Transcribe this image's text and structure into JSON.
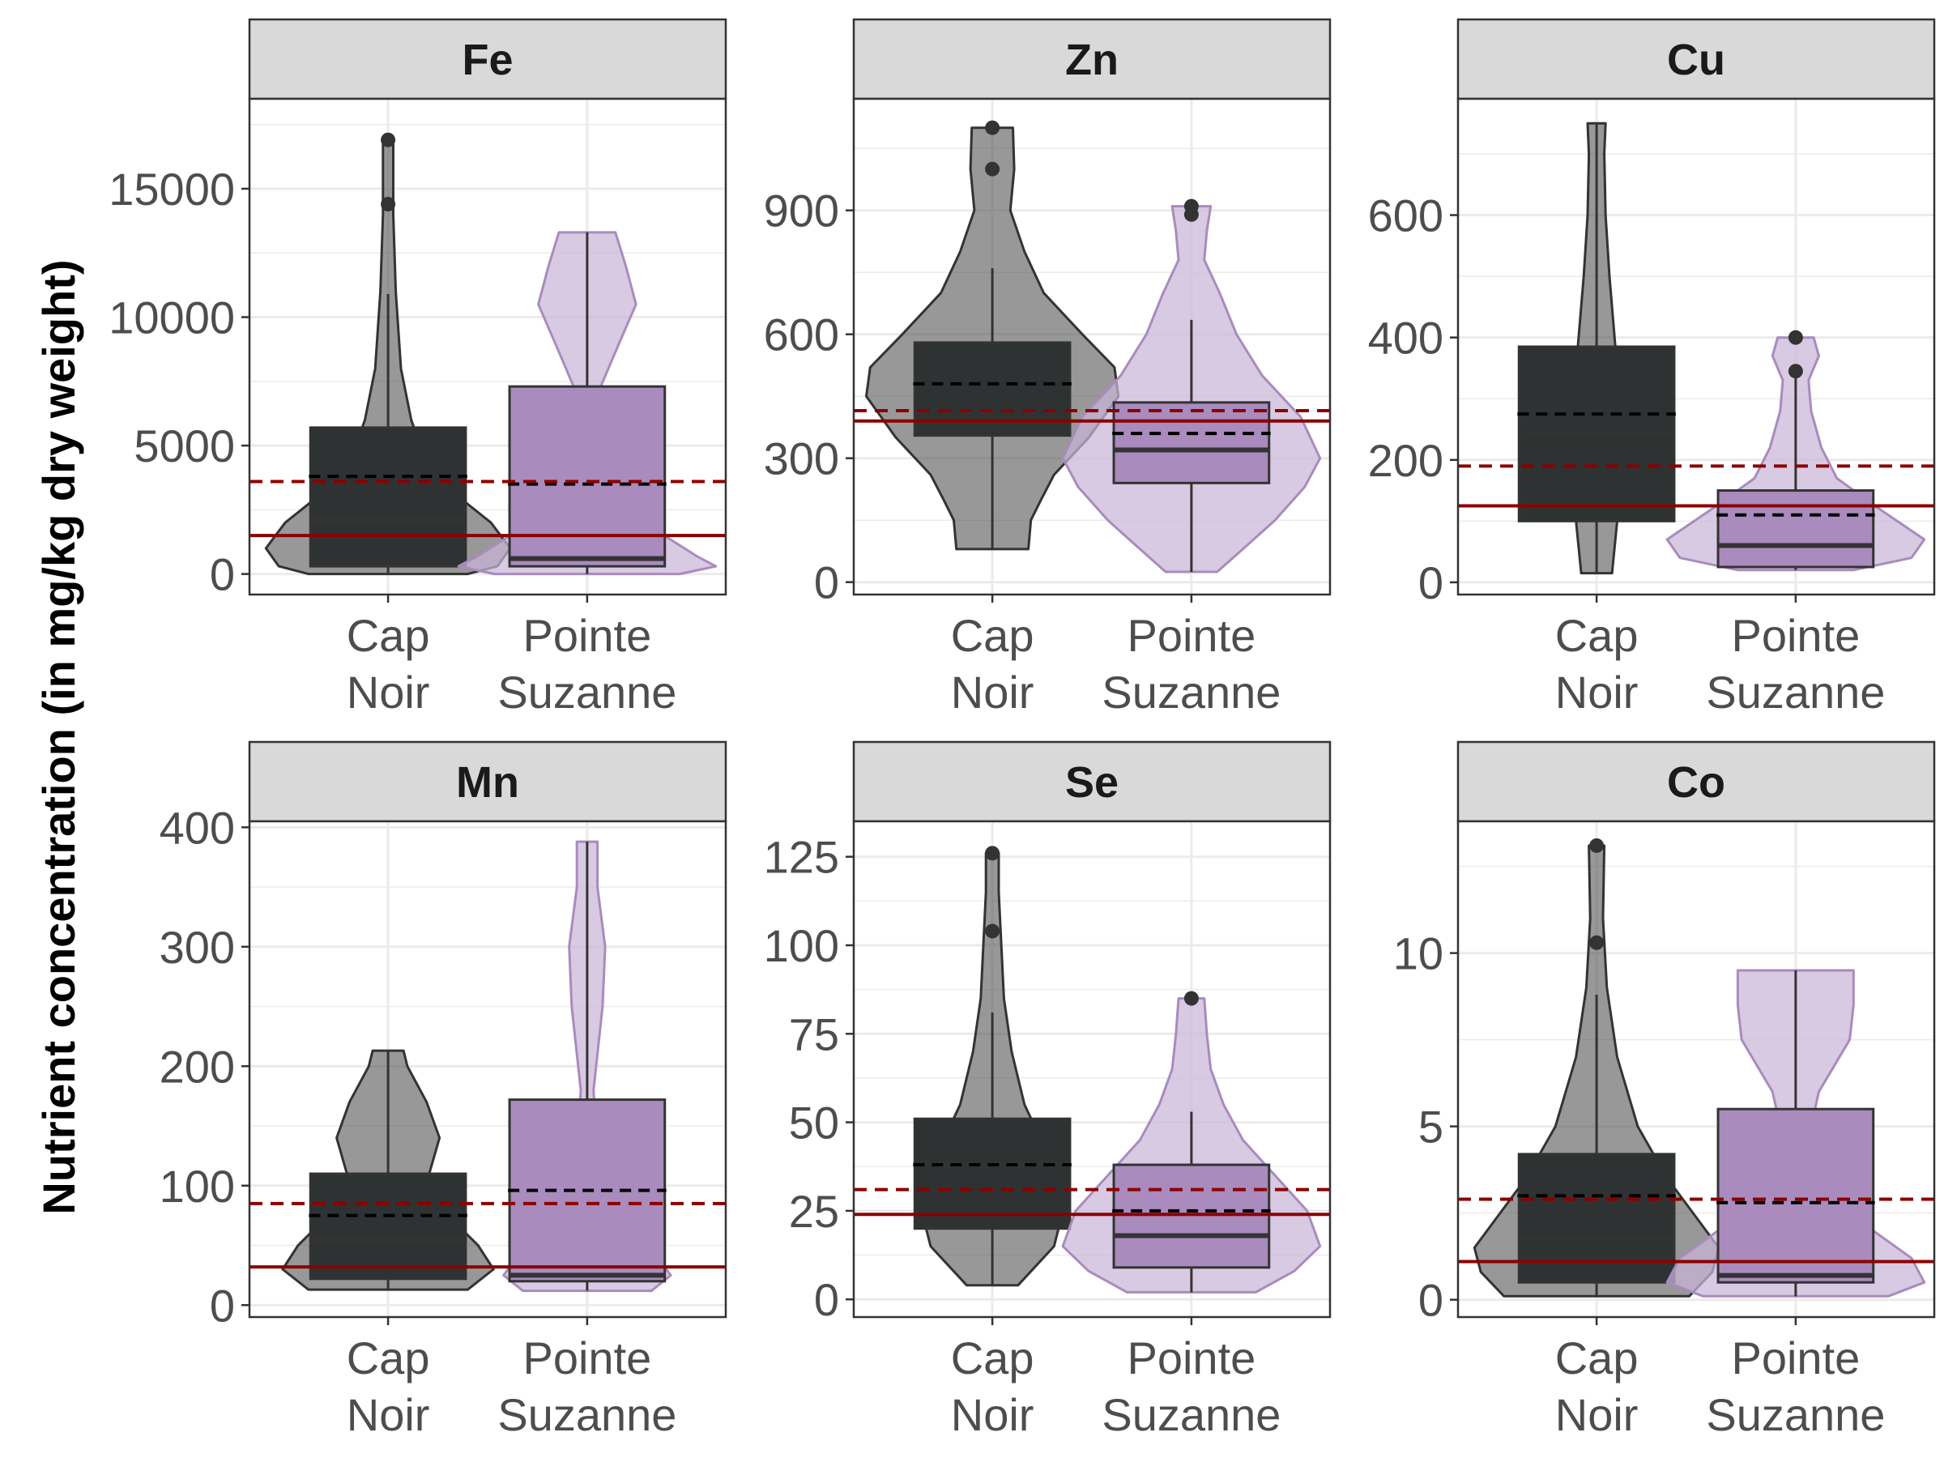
{
  "figure": {
    "ylabel": "Nutrient concentration (in mg/kg dry weight)"
  },
  "colors": {
    "cap_fill": "#4d4d4d",
    "cap_box": "#2f3233",
    "pointe_fill": "#c9b5d8",
    "pointe_box": "#a98bbd",
    "pointe_line": "#a98bbd",
    "ref_line": "#8b0000"
  },
  "chart_data": [
    {
      "type": "violin+box",
      "title": "Fe",
      "categories": [
        "Cap\nNoir",
        "Pointe\nSuzanne"
      ],
      "yticks": [
        0,
        5000,
        10000,
        15000
      ],
      "ylim": [
        -800,
        18500
      ],
      "grid": true,
      "ref_solid": 1500,
      "ref_dashed": 3600,
      "series": [
        {
          "category": "Cap Noir",
          "box": {
            "q1": 300,
            "median": 2100,
            "q3": 5700,
            "whisker_low": 0,
            "whisker_high": 10900,
            "mean": 3800
          },
          "outliers": [
            16900,
            14400
          ],
          "violin": [
            [
              0,
              0.62
            ],
            [
              300,
              0.85
            ],
            [
              1000,
              0.95
            ],
            [
              2000,
              0.8
            ],
            [
              3000,
              0.55
            ],
            [
              4000,
              0.35
            ],
            [
              5000,
              0.25
            ],
            [
              6000,
              0.18
            ],
            [
              8000,
              0.1
            ],
            [
              11000,
              0.06
            ],
            [
              14000,
              0.04
            ],
            [
              16900,
              0.04
            ]
          ]
        },
        {
          "category": "Pointe Suzanne",
          "box": {
            "q1": 300,
            "median": 600,
            "q3": 7300,
            "whisker_low": 0,
            "whisker_high": 13300,
            "mean": 3500
          },
          "outliers": [],
          "violin": [
            [
              0,
              0.72
            ],
            [
              300,
              1.0
            ],
            [
              700,
              0.85
            ],
            [
              1500,
              0.6
            ],
            [
              2500,
              0.38
            ],
            [
              3500,
              0.2
            ],
            [
              5000,
              0.1
            ],
            [
              7000,
              0.08
            ],
            [
              9000,
              0.25
            ],
            [
              10500,
              0.38
            ],
            [
              12000,
              0.3
            ],
            [
              13300,
              0.22
            ]
          ]
        }
      ]
    },
    {
      "type": "violin+box",
      "title": "Zn",
      "categories": [
        "Cap\nNoir",
        "Pointe\nSuzanne"
      ],
      "yticks": [
        0,
        300,
        600,
        900
      ],
      "ylim": [
        -30,
        1170
      ],
      "grid": true,
      "ref_solid": 390,
      "ref_dashed": 415,
      "series": [
        {
          "category": "Cap Noir",
          "box": {
            "q1": 355,
            "median": 385,
            "q3": 580,
            "whisker_low": 80,
            "whisker_high": 760,
            "mean": 480
          },
          "outliers": [
            1100,
            1000
          ],
          "violin": [
            [
              80,
              0.28
            ],
            [
              150,
              0.3
            ],
            [
              200,
              0.38
            ],
            [
              260,
              0.48
            ],
            [
              350,
              0.75
            ],
            [
              450,
              0.98
            ],
            [
              520,
              0.95
            ],
            [
              600,
              0.7
            ],
            [
              700,
              0.4
            ],
            [
              800,
              0.25
            ],
            [
              900,
              0.14
            ],
            [
              1000,
              0.17
            ],
            [
              1100,
              0.16
            ]
          ]
        },
        {
          "category": "Pointe Suzanne",
          "box": {
            "q1": 240,
            "median": 320,
            "q3": 435,
            "whisker_low": 25,
            "whisker_high": 635,
            "mean": 360
          },
          "outliers": [
            910,
            890
          ],
          "violin": [
            [
              25,
              0.2
            ],
            [
              80,
              0.4
            ],
            [
              150,
              0.65
            ],
            [
              230,
              0.88
            ],
            [
              300,
              1.0
            ],
            [
              400,
              0.85
            ],
            [
              500,
              0.55
            ],
            [
              600,
              0.35
            ],
            [
              700,
              0.22
            ],
            [
              780,
              0.1
            ],
            [
              850,
              0.12
            ],
            [
              910,
              0.15
            ]
          ]
        }
      ]
    },
    {
      "type": "violin+box",
      "title": "Cu",
      "categories": [
        "Cap\nNoir",
        "Pointe\nSuzanne"
      ],
      "yticks": [
        0,
        200,
        400,
        600
      ],
      "ylim": [
        -20,
        790
      ],
      "grid": true,
      "ref_solid": 125,
      "ref_dashed": 190,
      "series": [
        {
          "category": "Cap Noir",
          "box": {
            "q1": 100,
            "median": 240,
            "q3": 385,
            "whisker_low": 15,
            "whisker_high": 750,
            "mean": 275
          },
          "outliers": [],
          "violin": [
            [
              15,
              0.12
            ],
            [
              100,
              0.16
            ],
            [
              200,
              0.19
            ],
            [
              300,
              0.18
            ],
            [
              400,
              0.14
            ],
            [
              500,
              0.1
            ],
            [
              600,
              0.07
            ],
            [
              700,
              0.06
            ],
            [
              750,
              0.07
            ]
          ]
        },
        {
          "category": "Pointe Suzanne",
          "box": {
            "q1": 25,
            "median": 60,
            "q3": 150,
            "whisker_low": 20,
            "whisker_high": 340,
            "mean": 110
          },
          "outliers": [
            400,
            345
          ],
          "violin": [
            [
              20,
              0.45
            ],
            [
              40,
              0.9
            ],
            [
              70,
              1.0
            ],
            [
              120,
              0.65
            ],
            [
              170,
              0.32
            ],
            [
              220,
              0.2
            ],
            [
              280,
              0.12
            ],
            [
              330,
              0.1
            ],
            [
              370,
              0.18
            ],
            [
              400,
              0.14
            ]
          ]
        }
      ]
    },
    {
      "type": "violin+box",
      "title": "Mn",
      "categories": [
        "Cap\nNoir",
        "Pointe\nSuzanne"
      ],
      "yticks": [
        0,
        100,
        200,
        300,
        400
      ],
      "ylim": [
        -10,
        405
      ],
      "grid": true,
      "ref_solid": 32,
      "ref_dashed": 85,
      "series": [
        {
          "category": "Cap Noir",
          "box": {
            "q1": 22,
            "median": 55,
            "q3": 110,
            "whisker_low": 13,
            "whisker_high": 213,
            "mean": 75
          },
          "outliers": [],
          "violin": [
            [
              13,
              0.62
            ],
            [
              30,
              0.82
            ],
            [
              50,
              0.7
            ],
            [
              80,
              0.42
            ],
            [
              110,
              0.32
            ],
            [
              140,
              0.4
            ],
            [
              170,
              0.3
            ],
            [
              200,
              0.15
            ],
            [
              213,
              0.12
            ]
          ]
        },
        {
          "category": "Pointe Suzanne",
          "box": {
            "q1": 20,
            "median": 25,
            "q3": 172,
            "whisker_low": 12,
            "whisker_high": 388,
            "mean": 96
          },
          "outliers": [],
          "violin": [
            [
              12,
              0.5
            ],
            [
              25,
              0.65
            ],
            [
              50,
              0.48
            ],
            [
              80,
              0.15
            ],
            [
              120,
              0.08
            ],
            [
              180,
              0.05
            ],
            [
              250,
              0.12
            ],
            [
              300,
              0.14
            ],
            [
              350,
              0.08
            ],
            [
              388,
              0.08
            ]
          ]
        }
      ]
    },
    {
      "type": "violin+box",
      "title": "Se",
      "categories": [
        "Cap\nNoir",
        "Pointe\nSuzanne"
      ],
      "yticks": [
        0,
        25,
        50,
        75,
        100,
        125
      ],
      "ylim": [
        -5,
        135
      ],
      "grid": true,
      "ref_solid": 24,
      "ref_dashed": 31,
      "series": [
        {
          "category": "Cap Noir",
          "box": {
            "q1": 20,
            "median": 38,
            "q3": 51,
            "whisker_low": 4,
            "whisker_high": 81,
            "mean": 38
          },
          "outliers": [
            126,
            104
          ],
          "violin": [
            [
              4,
              0.2
            ],
            [
              15,
              0.48
            ],
            [
              25,
              0.55
            ],
            [
              35,
              0.5
            ],
            [
              45,
              0.38
            ],
            [
              55,
              0.25
            ],
            [
              70,
              0.15
            ],
            [
              85,
              0.09
            ],
            [
              100,
              0.07
            ],
            [
              115,
              0.05
            ],
            [
              126,
              0.05
            ]
          ]
        },
        {
          "category": "Pointe Suzanne",
          "box": {
            "q1": 9,
            "median": 18,
            "q3": 38,
            "whisker_low": 2,
            "whisker_high": 53,
            "mean": 25
          },
          "outliers": [
            85
          ],
          "violin": [
            [
              2,
              0.5
            ],
            [
              8,
              0.8
            ],
            [
              15,
              1.0
            ],
            [
              25,
              0.9
            ],
            [
              35,
              0.65
            ],
            [
              45,
              0.4
            ],
            [
              55,
              0.25
            ],
            [
              65,
              0.15
            ],
            [
              75,
              0.12
            ],
            [
              85,
              0.1
            ]
          ]
        }
      ]
    },
    {
      "type": "violin+box",
      "title": "Co",
      "categories": [
        "Cap\nNoir",
        "Pointe\nSuzanne"
      ],
      "yticks": [
        0,
        5,
        10
      ],
      "ylim": [
        -0.5,
        13.8
      ],
      "grid": true,
      "ref_solid": 1.1,
      "ref_dashed": 2.9,
      "series": [
        {
          "category": "Cap Noir",
          "box": {
            "q1": 0.5,
            "median": 1.8,
            "q3": 4.2,
            "whisker_low": 0.1,
            "whisker_high": 8.8,
            "mean": 3.0
          },
          "outliers": [
            13.1,
            10.3
          ],
          "violin": [
            [
              0.1,
              0.72
            ],
            [
              0.8,
              0.9
            ],
            [
              1.5,
              0.95
            ],
            [
              2.5,
              0.75
            ],
            [
              3.5,
              0.55
            ],
            [
              5,
              0.32
            ],
            [
              7,
              0.16
            ],
            [
              9,
              0.08
            ],
            [
              11,
              0.05
            ],
            [
              13.1,
              0.06
            ]
          ]
        },
        {
          "category": "Pointe Suzanne",
          "box": {
            "q1": 0.5,
            "median": 0.7,
            "q3": 5.5,
            "whisker_low": 0.1,
            "whisker_high": 9.5,
            "mean": 2.8
          },
          "outliers": [],
          "violin": [
            [
              0.1,
              0.72
            ],
            [
              0.5,
              1.0
            ],
            [
              1.2,
              0.9
            ],
            [
              2,
              0.6
            ],
            [
              3,
              0.35
            ],
            [
              4,
              0.2
            ],
            [
              5,
              0.12
            ],
            [
              6,
              0.18
            ],
            [
              7.5,
              0.42
            ],
            [
              8.5,
              0.45
            ],
            [
              9.5,
              0.45
            ]
          ]
        }
      ]
    }
  ]
}
